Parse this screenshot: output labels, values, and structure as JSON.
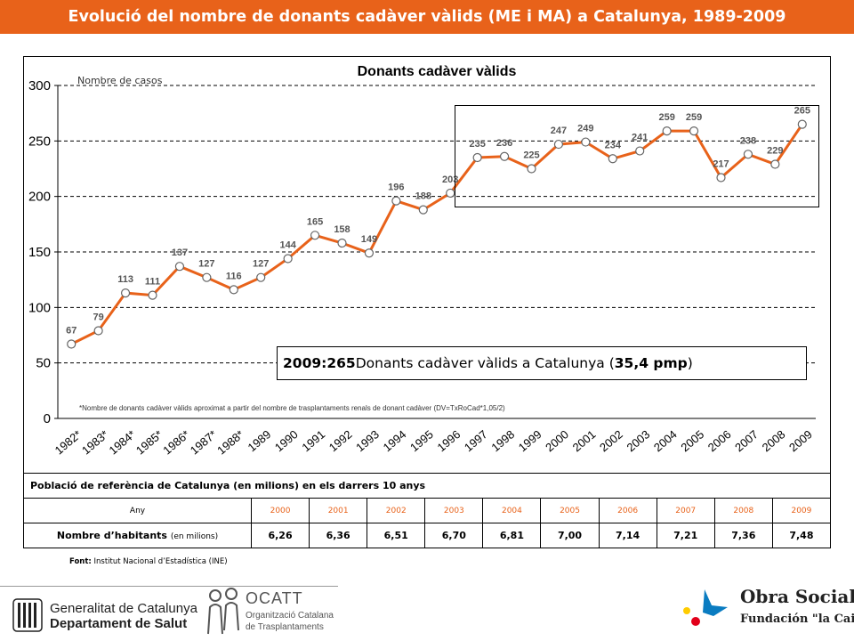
{
  "page": {
    "title": "Evolució del nombre de donants cadàver vàlids (ME i MA) a Catalunya, 1989-2009"
  },
  "chart_data": {
    "type": "line",
    "title": "Donants cadàver vàlids",
    "ylabel": "Nombre de casos",
    "xlabel": "",
    "ylim": [
      0,
      300
    ],
    "yticks": [
      0,
      50,
      100,
      150,
      200,
      250,
      300
    ],
    "grid": "horizontal dashed",
    "categories": [
      "1982*",
      "1983*",
      "1984*",
      "1985*",
      "1986*",
      "1987*",
      "1988*",
      "1989",
      "1990",
      "1991",
      "1992",
      "1993",
      "1994",
      "1995",
      "1996",
      "1997",
      "1998",
      "1999",
      "2000",
      "2001",
      "2002",
      "2003",
      "2004",
      "2005",
      "2006",
      "2007",
      "2008",
      "2009"
    ],
    "series": [
      {
        "values": [
          67,
          79,
          113,
          111,
          137,
          127,
          116,
          127,
          144,
          165,
          158,
          149,
          196,
          188,
          203,
          235,
          236,
          225,
          247,
          249,
          234,
          241,
          259,
          259,
          217,
          238,
          229,
          265
        ]
      }
    ],
    "line_color": "#e8621a",
    "footnote": "*Nombre de donants cadàver vàlids aproximat a partir del nombre de trasplantaments renals de donant cadàver (DV=TxRoCad*1,05/2)"
  },
  "callout": {
    "prefix": "2009: ",
    "value": "265",
    "middle": " Donants cadàver vàlids a Catalunya (",
    "rate": "35,4 pmp",
    "suffix": ")"
  },
  "table": {
    "title": "Població de referència de Catalunya (en milions) en els darrers 10 anys",
    "year_header": "Any",
    "years": [
      "2000",
      "2001",
      "2002",
      "2003",
      "2004",
      "2005",
      "2006",
      "2007",
      "2008",
      "2009"
    ],
    "row_label": "Nombre d’habitants",
    "row_unit": "(en milions)",
    "values": [
      "6,26",
      "6,36",
      "6,51",
      "6,70",
      "6,81",
      "7,00",
      "7,14",
      "7,21",
      "7,36",
      "7,48"
    ]
  },
  "source": {
    "label": "Font:",
    "text": " Institut Nacional d’Estadística (INE)"
  },
  "footer": {
    "gen_line1": "Generalitat de Catalunya",
    "gen_line2": "Departament de Salut",
    "ocatt_name": "OCATT",
    "ocatt_line1": "Organització Catalana",
    "ocatt_line2": "de Trasplantaments",
    "obra_line1": "Obra Social",
    "obra_line2": "Fundación \"la Caixa\""
  },
  "colors": {
    "accent": "#e8621a",
    "caixa_blue": "#0a7cc1",
    "caixa_red": "#e2001a",
    "caixa_yellow": "#ffcc00"
  }
}
